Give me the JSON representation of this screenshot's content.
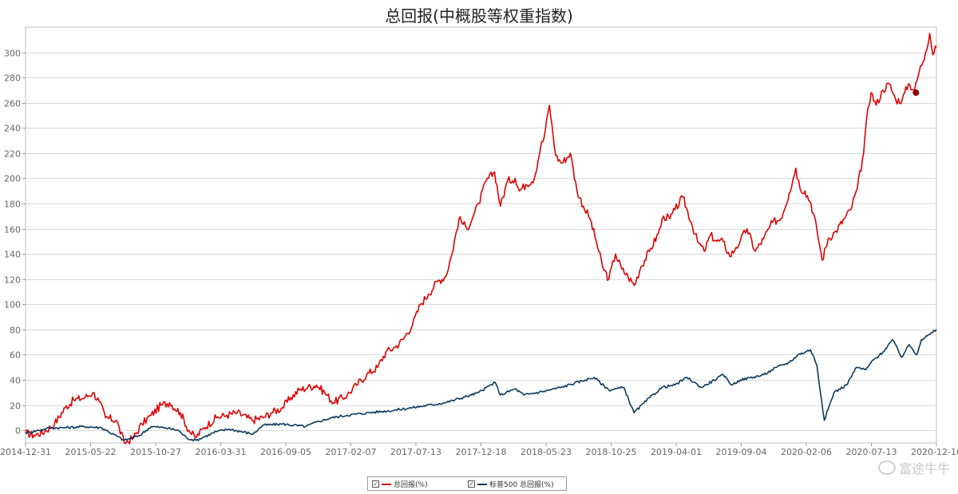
{
  "chart_data": {
    "type": "line",
    "title": "总回报(中概股等权重指数)",
    "ylim": [
      -10,
      320
    ],
    "y_ticks": [
      0,
      20,
      40,
      60,
      80,
      100,
      120,
      140,
      160,
      180,
      200,
      220,
      240,
      260,
      280,
      300
    ],
    "x_start": "2014-12-31",
    "x_end": "2020-12-16",
    "x_tick_labels": [
      "2014-12-31",
      "2015-05-22",
      "2015-10-27",
      "2016-03-31",
      "2016-09-05",
      "2017-02-07",
      "2017-07-13",
      "2017-12-18",
      "2018-05-23",
      "2018-10-25",
      "2019-04-01",
      "2019-09-04",
      "2020-02-06",
      "2020-07-13",
      "2020-12-16"
    ],
    "grid": "horizontal",
    "legend_position": "bottom-center",
    "series": [
      {
        "name": "总回报(%)",
        "color": "#e00000",
        "points": [
          [
            "2014-12-31",
            -2
          ],
          [
            "2015-01-20",
            -4
          ],
          [
            "2015-02-15",
            -1
          ],
          [
            "2015-03-10",
            5
          ],
          [
            "2015-04-05",
            18
          ],
          [
            "2015-04-25",
            24
          ],
          [
            "2015-05-22",
            26
          ],
          [
            "2015-06-10",
            30
          ],
          [
            "2015-06-25",
            23
          ],
          [
            "2015-07-10",
            10
          ],
          [
            "2015-08-05",
            8
          ],
          [
            "2015-08-24",
            -10
          ],
          [
            "2015-09-15",
            -6
          ],
          [
            "2015-10-05",
            5
          ],
          [
            "2015-10-27",
            12
          ],
          [
            "2015-11-20",
            20
          ],
          [
            "2015-12-10",
            22
          ],
          [
            "2016-01-05",
            14
          ],
          [
            "2016-01-25",
            0
          ],
          [
            "2016-02-10",
            -6
          ],
          [
            "2016-03-01",
            2
          ],
          [
            "2016-03-31",
            10
          ],
          [
            "2016-04-25",
            12
          ],
          [
            "2016-05-20",
            14
          ],
          [
            "2016-06-24",
            8
          ],
          [
            "2016-07-20",
            10
          ],
          [
            "2016-08-10",
            14
          ],
          [
            "2016-09-05",
            18
          ],
          [
            "2016-09-25",
            26
          ],
          [
            "2016-10-15",
            32
          ],
          [
            "2016-11-05",
            34
          ],
          [
            "2016-11-25",
            36
          ],
          [
            "2016-12-15",
            30
          ],
          [
            "2017-01-05",
            22
          ],
          [
            "2017-02-07",
            28
          ],
          [
            "2017-03-01",
            36
          ],
          [
            "2017-03-25",
            44
          ],
          [
            "2017-04-20",
            50
          ],
          [
            "2017-05-10",
            62
          ],
          [
            "2017-06-01",
            66
          ],
          [
            "2017-06-20",
            72
          ],
          [
            "2017-07-13",
            84
          ],
          [
            "2017-08-01",
            100
          ],
          [
            "2017-08-20",
            108
          ],
          [
            "2017-09-10",
            118
          ],
          [
            "2017-09-30",
            122
          ],
          [
            "2017-10-15",
            140
          ],
          [
            "2017-11-01",
            168
          ],
          [
            "2017-11-20",
            160
          ],
          [
            "2017-12-05",
            170
          ],
          [
            "2017-12-18",
            180
          ],
          [
            "2018-01-05",
            198
          ],
          [
            "2018-01-25",
            205
          ],
          [
            "2018-02-08",
            178
          ],
          [
            "2018-02-25",
            198
          ],
          [
            "2018-03-15",
            200
          ],
          [
            "2018-03-25",
            190
          ],
          [
            "2018-04-10",
            195
          ],
          [
            "2018-04-30",
            200
          ],
          [
            "2018-05-15",
            225
          ],
          [
            "2018-05-23",
            232
          ],
          [
            "2018-06-05",
            258
          ],
          [
            "2018-06-20",
            218
          ],
          [
            "2018-07-05",
            212
          ],
          [
            "2018-07-25",
            220
          ],
          [
            "2018-08-10",
            190
          ],
          [
            "2018-08-25",
            178
          ],
          [
            "2018-09-10",
            168
          ],
          [
            "2018-09-25",
            150
          ],
          [
            "2018-10-10",
            130
          ],
          [
            "2018-10-25",
            120
          ],
          [
            "2018-11-10",
            140
          ],
          [
            "2018-11-25",
            128
          ],
          [
            "2018-12-10",
            122
          ],
          [
            "2018-12-25",
            115
          ],
          [
            "2019-01-10",
            130
          ],
          [
            "2019-01-30",
            142
          ],
          [
            "2019-02-20",
            156
          ],
          [
            "2019-03-05",
            170
          ],
          [
            "2019-03-20",
            168
          ],
          [
            "2019-04-01",
            175
          ],
          [
            "2019-04-20",
            185
          ],
          [
            "2019-05-10",
            165
          ],
          [
            "2019-05-25",
            150
          ],
          [
            "2019-06-10",
            142
          ],
          [
            "2019-06-25",
            155
          ],
          [
            "2019-07-10",
            150
          ],
          [
            "2019-07-25",
            150
          ],
          [
            "2019-08-10",
            138
          ],
          [
            "2019-08-25",
            145
          ],
          [
            "2019-09-04",
            150
          ],
          [
            "2019-09-20",
            160
          ],
          [
            "2019-10-10",
            142
          ],
          [
            "2019-10-30",
            152
          ],
          [
            "2019-11-20",
            165
          ],
          [
            "2019-12-10",
            168
          ],
          [
            "2019-12-30",
            188
          ],
          [
            "2020-01-15",
            208
          ],
          [
            "2020-01-25",
            192
          ],
          [
            "2020-02-06",
            190
          ],
          [
            "2020-02-20",
            180
          ],
          [
            "2020-03-05",
            160
          ],
          [
            "2020-03-18",
            135
          ],
          [
            "2020-04-01",
            152
          ],
          [
            "2020-04-20",
            158
          ],
          [
            "2020-05-10",
            168
          ],
          [
            "2020-05-25",
            175
          ],
          [
            "2020-06-10",
            192
          ],
          [
            "2020-06-25",
            220
          ],
          [
            "2020-07-05",
            255
          ],
          [
            "2020-07-13",
            268
          ],
          [
            "2020-07-25",
            258
          ],
          [
            "2020-08-10",
            270
          ],
          [
            "2020-08-25",
            275
          ],
          [
            "2020-09-10",
            262
          ],
          [
            "2020-09-25",
            262
          ],
          [
            "2020-10-10",
            275
          ],
          [
            "2020-10-25",
            270
          ],
          [
            "2020-11-05",
            285
          ],
          [
            "2020-11-20",
            300
          ],
          [
            "2020-11-30",
            315
          ],
          [
            "2020-12-08",
            298
          ],
          [
            "2020-12-16",
            304
          ]
        ]
      },
      {
        "name": "标普500 总回报(%)",
        "color": "#0e3a5f",
        "points": [
          [
            "2014-12-31",
            -2
          ],
          [
            "2015-02-01",
            0
          ],
          [
            "2015-03-01",
            2
          ],
          [
            "2015-04-01",
            2
          ],
          [
            "2015-05-22",
            3
          ],
          [
            "2015-07-01",
            2
          ],
          [
            "2015-08-24",
            -8
          ],
          [
            "2015-09-30",
            -4
          ],
          [
            "2015-10-27",
            3
          ],
          [
            "2015-11-30",
            2
          ],
          [
            "2015-12-31",
            0
          ],
          [
            "2016-01-20",
            -6
          ],
          [
            "2016-02-11",
            -8
          ],
          [
            "2016-03-31",
            -1
          ],
          [
            "2016-05-01",
            1
          ],
          [
            "2016-06-27",
            -3
          ],
          [
            "2016-07-20",
            4
          ],
          [
            "2016-09-05",
            5
          ],
          [
            "2016-10-30",
            3
          ],
          [
            "2016-11-30",
            7
          ],
          [
            "2017-01-01",
            10
          ],
          [
            "2017-02-07",
            12
          ],
          [
            "2017-03-31",
            14
          ],
          [
            "2017-05-31",
            16
          ],
          [
            "2017-07-13",
            18
          ],
          [
            "2017-09-30",
            22
          ],
          [
            "2017-11-30",
            28
          ],
          [
            "2017-12-18",
            30
          ],
          [
            "2018-01-26",
            38
          ],
          [
            "2018-02-08",
            28
          ],
          [
            "2018-03-15",
            33
          ],
          [
            "2018-04-05",
            28
          ],
          [
            "2018-05-23",
            31
          ],
          [
            "2018-07-01",
            34
          ],
          [
            "2018-08-30",
            40
          ],
          [
            "2018-09-20",
            42
          ],
          [
            "2018-10-25",
            32
          ],
          [
            "2018-11-30",
            34
          ],
          [
            "2018-12-24",
            14
          ],
          [
            "2019-01-31",
            26
          ],
          [
            "2019-03-01",
            34
          ],
          [
            "2019-04-01",
            36
          ],
          [
            "2019-04-30",
            42
          ],
          [
            "2019-06-03",
            34
          ],
          [
            "2019-07-26",
            44
          ],
          [
            "2019-08-15",
            36
          ],
          [
            "2019-09-04",
            40
          ],
          [
            "2019-10-30",
            44
          ],
          [
            "2019-11-30",
            50
          ],
          [
            "2019-12-31",
            54
          ],
          [
            "2020-01-20",
            60
          ],
          [
            "2020-02-06",
            62
          ],
          [
            "2020-02-19",
            64
          ],
          [
            "2020-03-05",
            52
          ],
          [
            "2020-03-23",
            8
          ],
          [
            "2020-04-15",
            30
          ],
          [
            "2020-05-15",
            36
          ],
          [
            "2020-06-08",
            50
          ],
          [
            "2020-06-30",
            48
          ],
          [
            "2020-07-13",
            54
          ],
          [
            "2020-08-10",
            62
          ],
          [
            "2020-09-02",
            72
          ],
          [
            "2020-09-24",
            58
          ],
          [
            "2020-10-12",
            68
          ],
          [
            "2020-10-30",
            60
          ],
          [
            "2020-11-10",
            72
          ],
          [
            "2020-11-30",
            76
          ],
          [
            "2020-12-16",
            80
          ]
        ]
      }
    ],
    "highlight_marker": {
      "date": "2020-10-28",
      "value": 268,
      "color": "#a00000"
    }
  },
  "legend": {
    "items": [
      {
        "label": "总回报(%)",
        "color": "#e00000"
      },
      {
        "label": "标普500 总回报(%)",
        "color": "#0e3a5f"
      }
    ],
    "check_mark": "✓"
  },
  "watermark": {
    "text": "富途牛牛"
  }
}
